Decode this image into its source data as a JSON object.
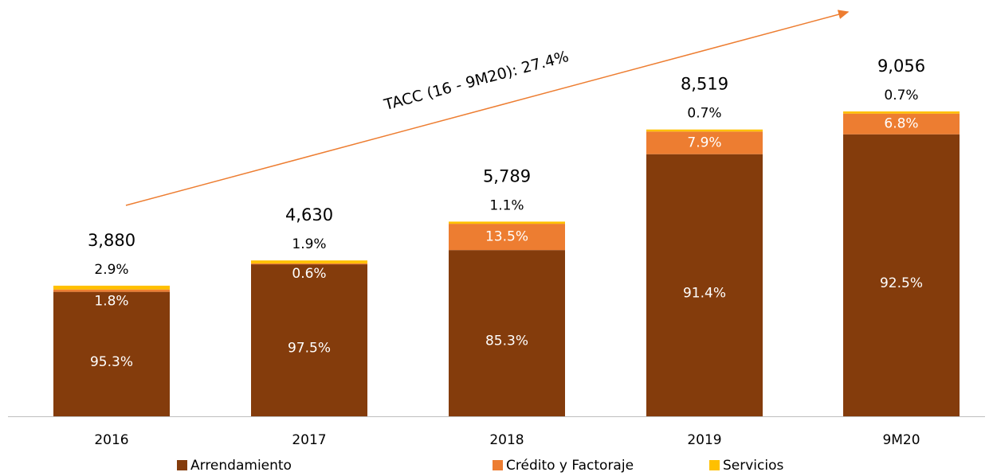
{
  "chart_data": {
    "type": "stacked_bar",
    "annotation": "TACC (16 - 9M20): 27.4%",
    "categories": [
      "2016",
      "2017",
      "2018",
      "2019",
      "9M20"
    ],
    "totals": {
      "values": [
        3880,
        4630,
        5789,
        8519,
        9056
      ],
      "value_labels": [
        "3,880",
        "4,630",
        "5,789",
        "8,519",
        "9,056"
      ]
    },
    "series": [
      {
        "name": "Arrendamiento",
        "color": "#843c0c",
        "values": [
          95.3,
          97.5,
          85.3,
          91.4,
          92.5
        ],
        "value_labels": [
          "95.3%",
          "97.5%",
          "85.3%",
          "91.4%",
          "92.5%"
        ]
      },
      {
        "name": "Crédito y Factoraje",
        "color": "#ed7d31",
        "values": [
          1.8,
          0.6,
          13.5,
          7.9,
          6.8
        ],
        "value_labels": [
          "1.8%",
          "0.6%",
          "13.5%",
          "7.9%",
          "6.8%"
        ]
      },
      {
        "name": "Servicios",
        "color": "#ffc000",
        "values": [
          2.9,
          1.9,
          1.1,
          0.7,
          0.7
        ],
        "value_labels": [
          "2.9%",
          "1.9%",
          "1.1%",
          "0.7%",
          "0.7%"
        ]
      }
    ]
  }
}
